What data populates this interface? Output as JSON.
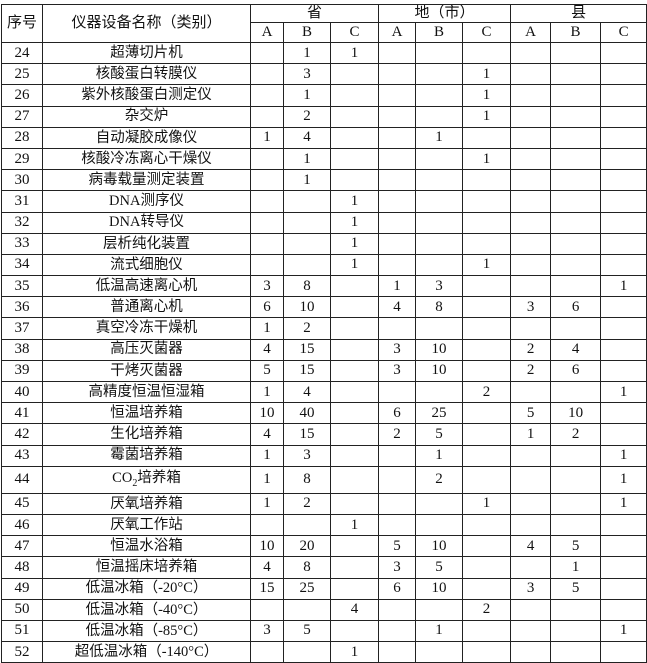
{
  "header": {
    "no": "序号",
    "name": "仪器设备名称（类别）",
    "groups": [
      "省",
      "地（市）",
      "县"
    ],
    "sub": [
      "A",
      "B",
      "C"
    ]
  },
  "rows": [
    {
      "no": "24",
      "name": "超薄切片机",
      "v": [
        "",
        "1",
        "1",
        "",
        "",
        "",
        "",
        "",
        ""
      ]
    },
    {
      "no": "25",
      "name": "核酸蛋白转膜仪",
      "v": [
        "",
        "3",
        "",
        "",
        "",
        "1",
        "",
        "",
        ""
      ]
    },
    {
      "no": "26",
      "name": "紫外核酸蛋白测定仪",
      "v": [
        "",
        "1",
        "",
        "",
        "",
        "1",
        "",
        "",
        ""
      ]
    },
    {
      "no": "27",
      "name": "杂交炉",
      "v": [
        "",
        "2",
        "",
        "",
        "",
        "1",
        "",
        "",
        ""
      ]
    },
    {
      "no": "28",
      "name": "自动凝胶成像仪",
      "v": [
        "1",
        "4",
        "",
        "",
        "1",
        "",
        "",
        "",
        ""
      ]
    },
    {
      "no": "29",
      "name": "核酸冷冻离心干燥仪",
      "v": [
        "",
        "1",
        "",
        "",
        "",
        "1",
        "",
        "",
        ""
      ]
    },
    {
      "no": "30",
      "name": "病毒载量测定装置",
      "v": [
        "",
        "1",
        "",
        "",
        "",
        "",
        "",
        "",
        ""
      ]
    },
    {
      "no": "31",
      "name": "DNA测序仪",
      "v": [
        "",
        "",
        "1",
        "",
        "",
        "",
        "",
        "",
        ""
      ]
    },
    {
      "no": "32",
      "name": "DNA转导仪",
      "v": [
        "",
        "",
        "1",
        "",
        "",
        "",
        "",
        "",
        ""
      ]
    },
    {
      "no": "33",
      "name": "层析纯化装置",
      "v": [
        "",
        "",
        "1",
        "",
        "",
        "",
        "",
        "",
        ""
      ]
    },
    {
      "no": "34",
      "name": "流式细胞仪",
      "v": [
        "",
        "",
        "1",
        "",
        "",
        "1",
        "",
        "",
        ""
      ]
    },
    {
      "no": "35",
      "name": "低温高速离心机",
      "v": [
        "3",
        "8",
        "",
        "1",
        "3",
        "",
        "",
        "",
        "1"
      ]
    },
    {
      "no": "36",
      "name": "普通离心机",
      "v": [
        "6",
        "10",
        "",
        "4",
        "8",
        "",
        "3",
        "6",
        ""
      ]
    },
    {
      "no": "37",
      "name": "真空冷冻干燥机",
      "v": [
        "1",
        "2",
        "",
        "",
        "",
        "",
        "",
        "",
        ""
      ]
    },
    {
      "no": "38",
      "name": "高压灭菌器",
      "v": [
        "4",
        "15",
        "",
        "3",
        "10",
        "",
        "2",
        "4",
        ""
      ]
    },
    {
      "no": "39",
      "name": "干烤灭菌器",
      "v": [
        "5",
        "15",
        "",
        "3",
        "10",
        "",
        "2",
        "6",
        ""
      ]
    },
    {
      "no": "40",
      "name": "高精度恒温恒湿箱",
      "v": [
        "1",
        "4",
        "",
        "",
        "",
        "2",
        "",
        "",
        "1"
      ]
    },
    {
      "no": "41",
      "name": "恒温培养箱",
      "v": [
        "10",
        "40",
        "",
        "6",
        "25",
        "",
        "5",
        "10",
        ""
      ]
    },
    {
      "no": "42",
      "name": "生化培养箱",
      "v": [
        "4",
        "15",
        "",
        "2",
        "5",
        "",
        "1",
        "2",
        ""
      ]
    },
    {
      "no": "43",
      "name": "霉菌培养箱",
      "v": [
        "1",
        "3",
        "",
        "",
        "1",
        "",
        "",
        "",
        "1"
      ]
    },
    {
      "no": "44",
      "name_parts": [
        "CO",
        "2",
        "培养箱"
      ],
      "v": [
        "1",
        "8",
        "",
        "",
        "2",
        "",
        "",
        "",
        "1"
      ]
    },
    {
      "no": "45",
      "name": "厌氧培养箱",
      "v": [
        "1",
        "2",
        "",
        "",
        "",
        "1",
        "",
        "",
        "1"
      ]
    },
    {
      "no": "46",
      "name": "厌氧工作站",
      "v": [
        "",
        "",
        "1",
        "",
        "",
        "",
        "",
        "",
        ""
      ]
    },
    {
      "no": "47",
      "name": "恒温水浴箱",
      "v": [
        "10",
        "20",
        "",
        "5",
        "10",
        "",
        "4",
        "5",
        ""
      ]
    },
    {
      "no": "48",
      "name": "恒温摇床培养箱",
      "v": [
        "4",
        "8",
        "",
        "3",
        "5",
        "",
        "",
        "1",
        ""
      ]
    },
    {
      "no": "49",
      "name": "低温冰箱（-20°C）",
      "v": [
        "15",
        "25",
        "",
        "6",
        "10",
        "",
        "3",
        "5",
        ""
      ]
    },
    {
      "no": "50",
      "name": "低温冰箱（-40°C）",
      "v": [
        "",
        "",
        "4",
        "",
        "",
        "2",
        "",
        "",
        ""
      ]
    },
    {
      "no": "51",
      "name": "低温冰箱（-85°C）",
      "v": [
        "3",
        "5",
        "",
        "",
        "1",
        "",
        "",
        "",
        "1"
      ]
    },
    {
      "no": "52",
      "name": "超低温冰箱（-140°C）",
      "v": [
        "",
        "",
        "1",
        "",
        "",
        "",
        "",
        "",
        ""
      ]
    }
  ]
}
